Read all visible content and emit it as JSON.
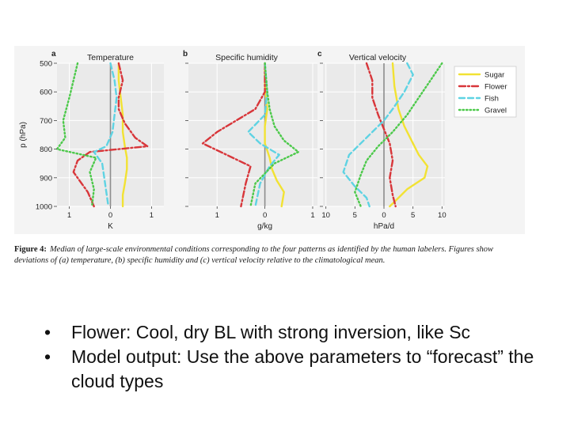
{
  "figure": {
    "caption_label": "Figure 4:",
    "caption_text": "Median of large-scale environmental conditions corresponding to the four patterns as identified by the human labelers. Figures show deviations of (a) temperature, (b) specific humidity and (c) vertical velocity relative to the climatological mean."
  },
  "colors": {
    "Sugar": "#f2e233",
    "Flower": "#d8363a",
    "Fish": "#5fd3e3",
    "Gravel": "#4cc94a",
    "zero_line": "#8c8c8c",
    "panel_bg": "#eaeaea",
    "grid": "#ffffff"
  },
  "chart_data": [
    {
      "type": "line",
      "panel_letter": "a",
      "title": "Temperature",
      "xlabel": "K",
      "ylabel": "p (hPa)",
      "x_ticks": [
        1,
        0,
        1
      ],
      "x_tick_values": [
        -1,
        0,
        1
      ],
      "xlim": [
        -1.3,
        1.3
      ],
      "y_ticks": [
        500,
        600,
        700,
        800,
        900,
        1000
      ],
      "ylim": [
        500,
        1000
      ],
      "y_inverted": true,
      "legend": "none",
      "series": [
        {
          "name": "Sugar",
          "style": "solid",
          "x": [
            0.2,
            0.2,
            0.25,
            0.3,
            0.3,
            0.35,
            0.4,
            0.4,
            0.35,
            0.3,
            0.3
          ],
          "y": [
            500,
            560,
            620,
            680,
            740,
            790,
            830,
            870,
            920,
            960,
            1000
          ]
        },
        {
          "name": "Flower",
          "style": "dashdot",
          "x": [
            0.2,
            0.3,
            0.2,
            0.2,
            0.35,
            0.6,
            0.9,
            -0.5,
            -0.8,
            -0.9,
            -0.55,
            -0.4
          ],
          "y": [
            500,
            560,
            620,
            660,
            710,
            760,
            790,
            810,
            840,
            880,
            950,
            1000
          ]
        },
        {
          "name": "Fish",
          "style": "dashed",
          "x": [
            0.0,
            0.1,
            0.15,
            0.1,
            0.05,
            -0.1,
            -0.4,
            -0.2,
            -0.15,
            -0.1,
            -0.05
          ],
          "y": [
            500,
            560,
            620,
            680,
            740,
            790,
            810,
            850,
            900,
            950,
            1000
          ]
        },
        {
          "name": "Gravel",
          "style": "dotted",
          "x": [
            -0.8,
            -0.9,
            -1.0,
            -1.15,
            -1.1,
            -1.3,
            -0.35,
            -0.5,
            -0.4,
            -0.45
          ],
          "y": [
            500,
            560,
            620,
            700,
            760,
            800,
            830,
            880,
            940,
            1000
          ]
        }
      ]
    },
    {
      "type": "line",
      "panel_letter": "b",
      "title": "Specific humidity",
      "xlabel": "g/kg",
      "ylabel": "",
      "x_ticks": [
        1,
        0,
        1
      ],
      "x_tick_values": [
        -1,
        0,
        1
      ],
      "xlim": [
        -1.6,
        1.1
      ],
      "y_ticks": [
        500,
        600,
        700,
        800,
        900,
        1000
      ],
      "ylim": [
        500,
        1000
      ],
      "y_inverted": true,
      "legend": "none",
      "series": [
        {
          "name": "Sugar",
          "style": "solid",
          "x": [
            0.0,
            0.0,
            0.05,
            0.0,
            0.0,
            0.1,
            0.15,
            0.25,
            0.4,
            0.35
          ],
          "y": [
            500,
            580,
            660,
            720,
            780,
            830,
            870,
            910,
            950,
            1000
          ]
        },
        {
          "name": "Flower",
          "style": "dashdot",
          "x": [
            0.0,
            0.0,
            -0.2,
            -0.6,
            -1.0,
            -1.3,
            -0.8,
            -0.3,
            -0.4,
            -0.5
          ],
          "y": [
            500,
            600,
            660,
            700,
            740,
            780,
            820,
            860,
            920,
            1000
          ]
        },
        {
          "name": "Fish",
          "style": "dashed",
          "x": [
            0.0,
            0.05,
            0.0,
            -0.35,
            -0.1,
            0.3,
            0.1,
            -0.1,
            -0.2
          ],
          "y": [
            500,
            600,
            680,
            740,
            780,
            820,
            860,
            920,
            1000
          ]
        },
        {
          "name": "Gravel",
          "style": "dotted",
          "x": [
            0.0,
            0.05,
            0.1,
            0.2,
            0.4,
            0.7,
            0.2,
            -0.2,
            -0.3
          ],
          "y": [
            500,
            600,
            660,
            720,
            770,
            810,
            850,
            920,
            1000
          ]
        }
      ]
    },
    {
      "type": "line",
      "panel_letter": "c",
      "title": "Vertical velocity",
      "xlabel": "hPa/d",
      "ylabel": "",
      "x_ticks": [
        10,
        5,
        0,
        5,
        10
      ],
      "x_tick_values": [
        -10,
        -5,
        0,
        5,
        10
      ],
      "xlim": [
        -10.5,
        10.5
      ],
      "y_ticks": [
        500,
        600,
        700,
        800,
        900,
        1000
      ],
      "ylim": [
        500,
        1000
      ],
      "y_inverted": true,
      "legend": "top-right",
      "series": [
        {
          "name": "Sugar",
          "style": "solid",
          "x": [
            1.5,
            1.8,
            2.5,
            3.5,
            5,
            6,
            7.5,
            7,
            4,
            2,
            1
          ],
          "y": [
            500,
            580,
            660,
            720,
            780,
            820,
            860,
            900,
            940,
            980,
            1000
          ]
        },
        {
          "name": "Flower",
          "style": "dashdot",
          "x": [
            -3,
            -2,
            -2,
            -1,
            0,
            1,
            1.5,
            1,
            1.5,
            2
          ],
          "y": [
            500,
            560,
            620,
            680,
            730,
            780,
            840,
            900,
            960,
            1000
          ]
        },
        {
          "name": "Fish",
          "style": "dashed",
          "x": [
            4,
            5,
            3.5,
            1.5,
            0,
            -3,
            -6,
            -7,
            -5,
            -3,
            -2.5
          ],
          "y": [
            500,
            540,
            600,
            660,
            700,
            760,
            820,
            880,
            930,
            970,
            1000
          ]
        },
        {
          "name": "Gravel",
          "style": "dotted",
          "x": [
            10,
            8,
            6,
            4,
            1.5,
            -1,
            -3,
            -4,
            -5,
            -4
          ],
          "y": [
            500,
            560,
            620,
            680,
            740,
            790,
            840,
            890,
            950,
            1000
          ]
        }
      ]
    }
  ],
  "bullets": [
    "Flower: Cool, dry BL with strong inversion, like Sc",
    "Model output: Use the above parameters to “forecast” the cloud types"
  ],
  "bullet_char": "•"
}
